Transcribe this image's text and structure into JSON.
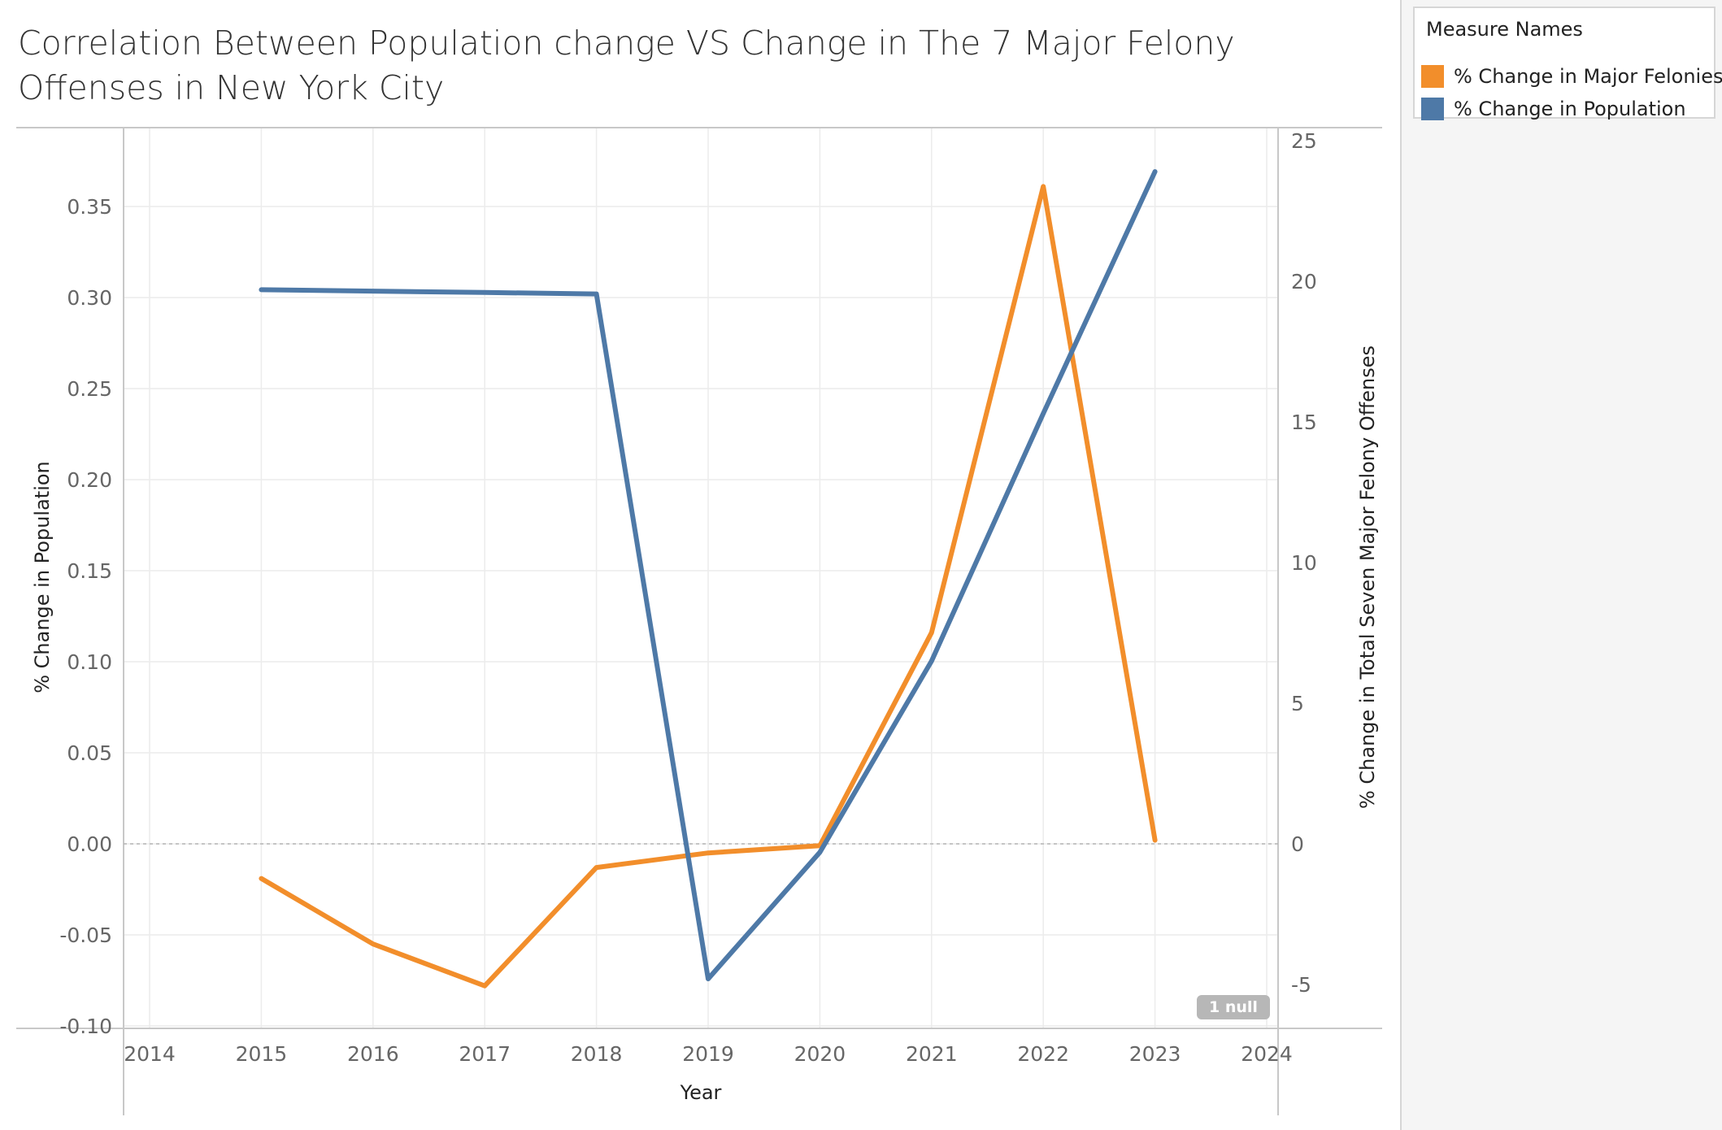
{
  "chart_data": {
    "type": "line",
    "title": "Correlation Between Population change VS Change in The 7 Major Felony Offenses in New York City",
    "xlabel": "Year",
    "ylabel_left": "% Change in Population",
    "ylabel_right": "% Change in Total Seven Major Felony Offenses",
    "x_ticks": [
      "2014",
      "2015",
      "2016",
      "2017",
      "2018",
      "2019",
      "2020",
      "2021",
      "2022",
      "2023",
      "2024"
    ],
    "xlim": [
      2014,
      2024
    ],
    "ylim_left": [
      -0.1,
      0.38
    ],
    "yticks_left": [
      "0.35",
      "0.30",
      "0.25",
      "0.20",
      "0.15",
      "0.10",
      "0.05",
      "0.00",
      "-0.05",
      "-0.10"
    ],
    "ylim_right": [
      -6.4,
      25
    ],
    "yticks_right": [
      "25",
      "20",
      "15",
      "10",
      "5",
      "0",
      "-5"
    ],
    "grid": true,
    "legend_position": "top-right",
    "series": [
      {
        "name": "% Change in Major Felonies",
        "axis": "left",
        "color": "#f28e2b",
        "x": [
          2015,
          2016,
          2017,
          2018,
          2019,
          2020,
          2021,
          2022,
          2023
        ],
        "values": [
          -0.019,
          -0.055,
          -0.078,
          -0.013,
          -0.005,
          -0.001,
          0.116,
          0.361,
          0.002
        ]
      },
      {
        "name": "% Change in Population",
        "axis": "right",
        "color": "#4e79a7",
        "x": [
          2015,
          2016,
          2017,
          2018,
          2019,
          2020,
          2021,
          2022,
          2023
        ],
        "values": [
          19.7,
          19.65,
          19.6,
          19.55,
          -4.8,
          -0.3,
          6.5,
          15.3,
          23.9
        ]
      }
    ],
    "annotation": "1 null"
  },
  "legend": {
    "title": "Measure Names",
    "items": [
      {
        "label": "% Change in Major Felonies",
        "color": "#f28e2b"
      },
      {
        "label": "% Change in Population",
        "color": "#4e79a7"
      }
    ]
  }
}
